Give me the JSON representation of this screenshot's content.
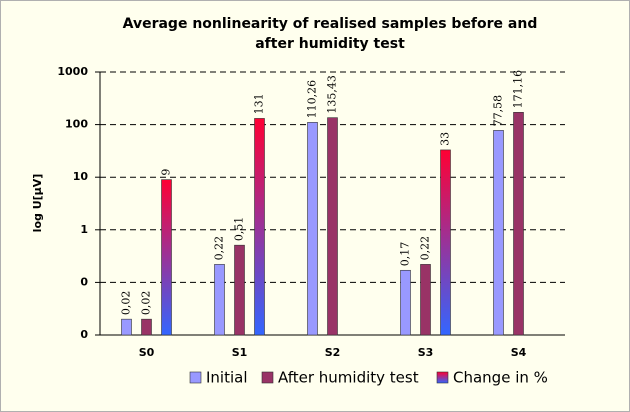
{
  "chart_data": {
    "type": "bar",
    "title": [
      "Average nonlinearity of realised samples before and",
      "after humidity test"
    ],
    "y_label": "log U[µV]",
    "categories": [
      "S0",
      "S1",
      "S2",
      "S3",
      "S4"
    ],
    "series": [
      {
        "name": "Initial",
        "color": "#9999ff",
        "values": [
          0.02,
          0.22,
          110.26,
          0.17,
          77.58
        ],
        "value_labels": [
          "0,02",
          "0,22",
          "110,26",
          "0,17",
          "77,58"
        ]
      },
      {
        "name": "After humidity test",
        "color": "#993366",
        "values": [
          0.02,
          0.51,
          135.43,
          0.22,
          171.16
        ],
        "value_labels": [
          "0,02",
          "0,51",
          "135,43",
          "0,22",
          "171,16"
        ]
      },
      {
        "name": "Change in %",
        "color": [
          "#ff0033",
          "#3366ff"
        ],
        "values": [
          9,
          131,
          null,
          33,
          null
        ],
        "value_labels": [
          "9",
          "131",
          null,
          "33",
          null
        ]
      }
    ],
    "log_scale": true,
    "ylim": [
      0.01,
      1000
    ],
    "yticks": [
      {
        "value": 0.01,
        "label": "0"
      },
      {
        "value": 0.1,
        "label": "0"
      },
      1,
      10,
      100,
      1000
    ],
    "grid": true,
    "legend": "bottom"
  }
}
